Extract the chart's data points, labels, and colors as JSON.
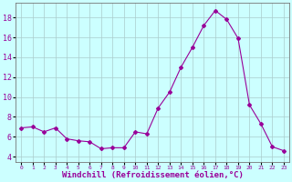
{
  "x": [
    0,
    1,
    2,
    3,
    4,
    5,
    6,
    7,
    8,
    9,
    10,
    11,
    12,
    13,
    14,
    15,
    16,
    17,
    18,
    19,
    20,
    21,
    22,
    23
  ],
  "y": [
    6.9,
    7.0,
    6.5,
    6.9,
    5.8,
    5.6,
    5.5,
    4.8,
    4.9,
    4.9,
    6.5,
    6.3,
    8.9,
    10.5,
    13.0,
    15.0,
    17.2,
    18.7,
    17.8,
    15.9,
    9.2,
    7.3,
    5.0,
    4.6
  ],
  "line_color": "#990099",
  "marker": "D",
  "marker_size": 2,
  "bg_color": "#ccffff",
  "grid_color": "#aacccc",
  "xlabel": "Windchill (Refroidissement éolien,°C)",
  "xlabel_color": "#990099",
  "tick_color": "#990099",
  "ylim": [
    3.5,
    19.5
  ],
  "xlim": [
    -0.5,
    23.5
  ],
  "yticks": [
    4,
    6,
    8,
    10,
    12,
    14,
    16,
    18
  ],
  "xtick_labels": [
    "0",
    "1",
    "2",
    "3",
    "4",
    "5",
    "6",
    "7",
    "8",
    "9",
    "10",
    "11",
    "12",
    "13",
    "14",
    "15",
    "16",
    "17",
    "18",
    "19",
    "20",
    "21",
    "22",
    "23"
  ]
}
